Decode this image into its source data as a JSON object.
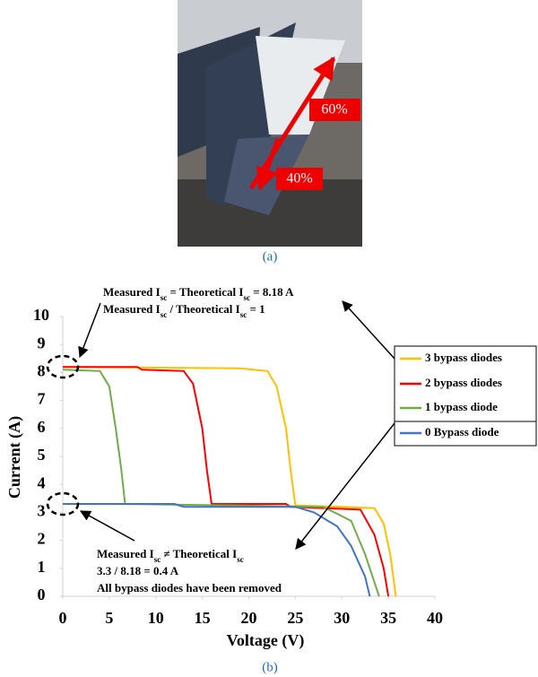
{
  "photo": {
    "labels": [
      "60%",
      "40%"
    ],
    "caption": "(a)"
  },
  "chart_data": {
    "type": "line",
    "caption": "(b)",
    "x_label": "Voltage (V)",
    "y_label": "Current (A)",
    "xlim": [
      0,
      40
    ],
    "ylim": [
      0,
      10
    ],
    "xticks": [
      0,
      5,
      10,
      15,
      20,
      25,
      30,
      35,
      40
    ],
    "yticks": [
      0,
      1,
      2,
      3,
      4,
      5,
      6,
      7,
      8,
      9,
      10
    ],
    "series": [
      {
        "name": "3 bypass diodes",
        "color": "#ffc000",
        "x": [
          0,
          19,
          22,
          23,
          24,
          24.5,
          25,
          30,
          33.5,
          34.5,
          35.2,
          35.6,
          35.8
        ],
        "values": [
          8.2,
          8.15,
          8.05,
          7.5,
          6,
          4.5,
          3.25,
          3.2,
          3.15,
          2.6,
          1.5,
          0.5,
          0
        ]
      },
      {
        "name": "2 bypass diodes",
        "color": "#ff0000",
        "x": [
          0,
          8,
          8.5,
          13,
          14,
          15,
          15.5,
          16,
          24,
          24.5,
          32,
          33.5,
          34.5,
          35
        ],
        "values": [
          8.2,
          8.2,
          8.1,
          8.05,
          7.6,
          6,
          4.5,
          3.3,
          3.3,
          3.2,
          3.1,
          2.2,
          1,
          0
        ]
      },
      {
        "name": "1 bypass diode",
        "color": "#70ad47",
        "x": [
          0,
          4,
          5,
          5.7,
          6.3,
          6.7,
          18,
          28,
          31,
          32.5,
          33.5,
          34
        ],
        "values": [
          8.1,
          8.05,
          7.5,
          6,
          4.5,
          3.3,
          3.25,
          3.2,
          2.7,
          1.5,
          0.5,
          0
        ]
      },
      {
        "name": "0 Bypass diode",
        "color": "#4472c4",
        "x": [
          0,
          12,
          13,
          25,
          27,
          29.5,
          31,
          32.5,
          33
        ],
        "values": [
          3.3,
          3.3,
          3.2,
          3.2,
          3,
          2.5,
          1.8,
          0.7,
          0
        ]
      }
    ],
    "annotations": [
      {
        "lines": [
          [
            "Measured I",
            "sc",
            " = Theoretical I",
            "sc",
            " = 8.18 A"
          ],
          [
            "Measured I",
            "sc",
            " / Theoretical I",
            "sc",
            " = 1"
          ]
        ]
      },
      {
        "lines": [
          [
            "Measured I",
            "sc",
            " ≠ Theoretical I",
            "sc"
          ],
          [
            "3.3 / 8.18 = 0.4 A"
          ],
          [
            "All bypass diodes have been removed"
          ]
        ]
      }
    ]
  }
}
